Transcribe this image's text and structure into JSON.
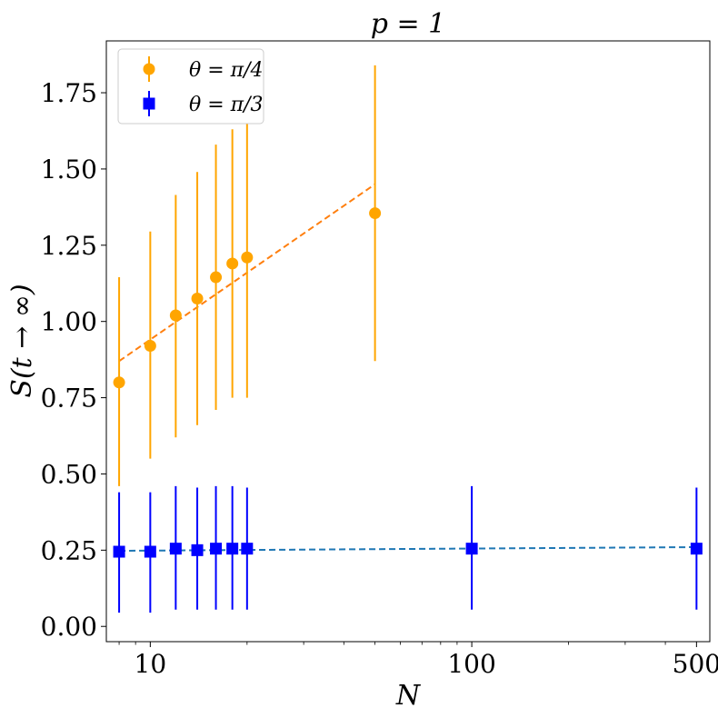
{
  "chart_data": {
    "type": "scatter",
    "title": "p = 1",
    "xlabel": "N",
    "ylabel": "S(t → ∞)",
    "xscale": "log",
    "xlim": [
      7.3,
      550
    ],
    "ylim": [
      -0.05,
      1.92
    ],
    "xticks": [
      10,
      100,
      500
    ],
    "xtick_labels": [
      "10",
      "100",
      "500"
    ],
    "yticks": [
      0.0,
      0.25,
      0.5,
      0.75,
      1.0,
      1.25,
      1.5,
      1.75
    ],
    "ytick_labels": [
      "0.00",
      "0.25",
      "0.50",
      "0.75",
      "1.00",
      "1.25",
      "1.50",
      "1.75"
    ],
    "legend_position": "top-left",
    "series": [
      {
        "name": "θ = π/4",
        "marker": "circle",
        "color": "#FFA500",
        "x": [
          8,
          10,
          12,
          14,
          16,
          18,
          20,
          50
        ],
        "y": [
          0.8,
          0.92,
          1.02,
          1.075,
          1.145,
          1.19,
          1.21,
          1.355
        ],
        "yerr_low": [
          0.46,
          0.55,
          0.62,
          0.66,
          0.71,
          0.75,
          0.75,
          0.87
        ],
        "yerr_high": [
          1.145,
          1.295,
          1.415,
          1.49,
          1.58,
          1.63,
          1.66,
          1.84
        ],
        "fit": {
          "x": [
            8,
            50
          ],
          "y": [
            0.87,
            1.45
          ],
          "color": "#ff7f0e"
        }
      },
      {
        "name": "θ = π/3",
        "marker": "square",
        "color": "#0000FF",
        "x": [
          8,
          10,
          12,
          14,
          16,
          18,
          20,
          100,
          500
        ],
        "y": [
          0.245,
          0.245,
          0.255,
          0.25,
          0.255,
          0.255,
          0.255,
          0.255,
          0.255
        ],
        "yerr_low": [
          0.045,
          0.045,
          0.055,
          0.055,
          0.055,
          0.055,
          0.055,
          0.055,
          0.055
        ],
        "yerr_high": [
          0.44,
          0.44,
          0.46,
          0.455,
          0.46,
          0.46,
          0.455,
          0.46,
          0.455
        ],
        "fit": {
          "x": [
            8,
            500
          ],
          "y": [
            0.248,
            0.26
          ],
          "color": "#1f77b4"
        }
      }
    ]
  }
}
